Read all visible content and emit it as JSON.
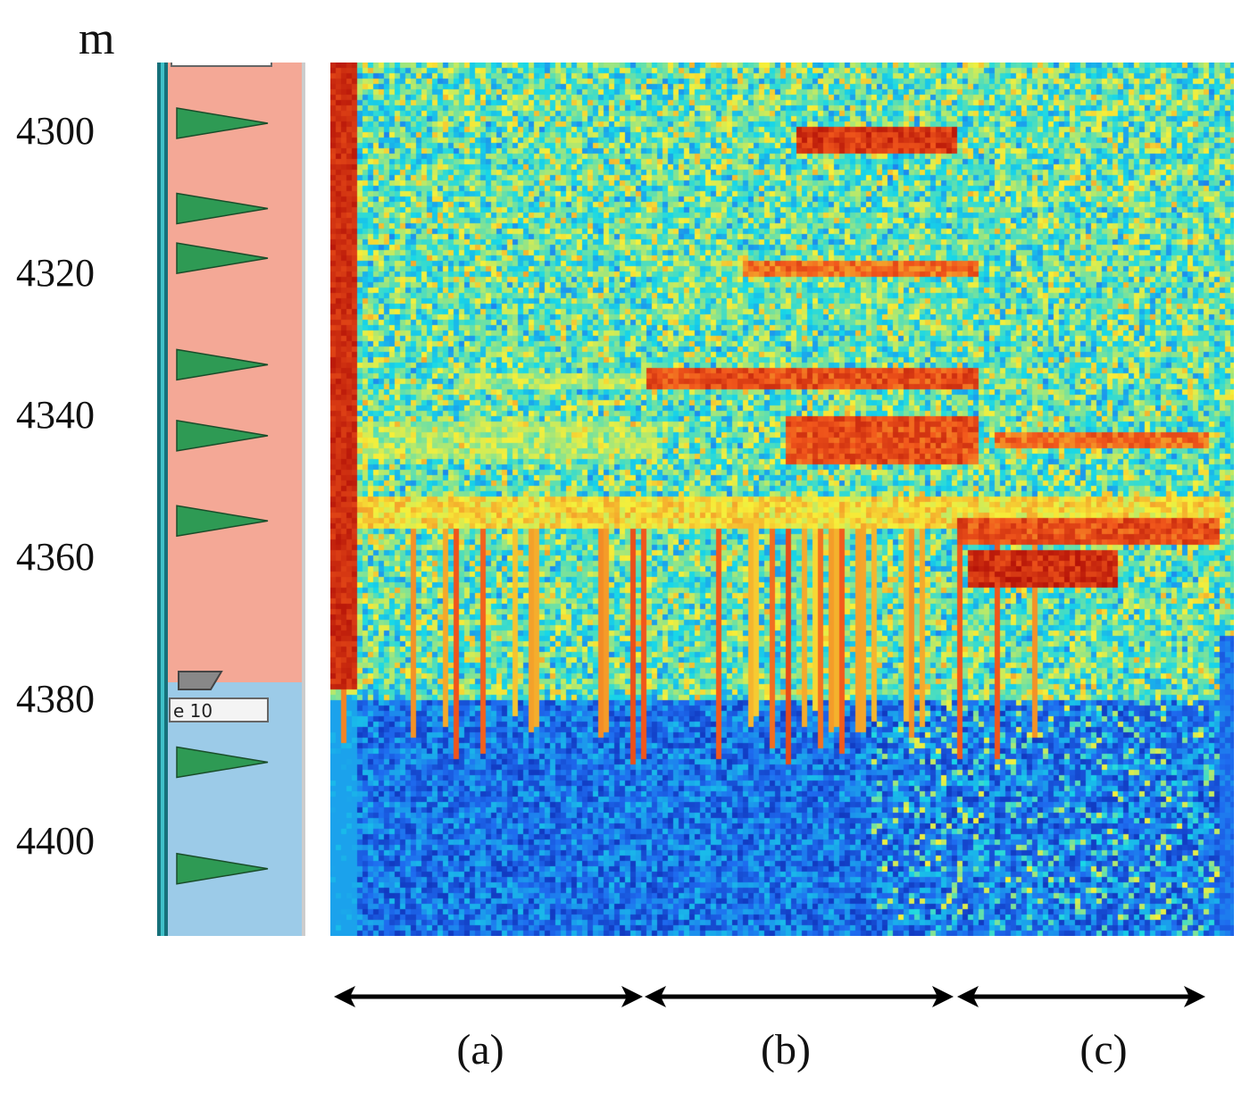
{
  "depth_unit": "m",
  "depth_ticks": [
    "4300",
    "4320",
    "4340",
    "4360",
    "4380",
    "4400"
  ],
  "well_log": {
    "zones": [
      {
        "from_m": 4290,
        "to_m": 4378,
        "color": "#f4a896"
      },
      {
        "from_m": 4378,
        "to_m": 4413,
        "color": "#9ccbe8"
      }
    ],
    "marker_color": "#2e9a54",
    "markers_m": [
      4299,
      4311,
      4318,
      4333,
      4343,
      4355,
      4389,
      4404
    ],
    "zone_tag": "e 10"
  },
  "segments": [
    "(a)",
    "(b)",
    "(c)"
  ],
  "colormap": [
    "#0a1fa8",
    "#1f6cf0",
    "#18d8e8",
    "#f7f03a",
    "#f2581c",
    "#a80404"
  ]
}
